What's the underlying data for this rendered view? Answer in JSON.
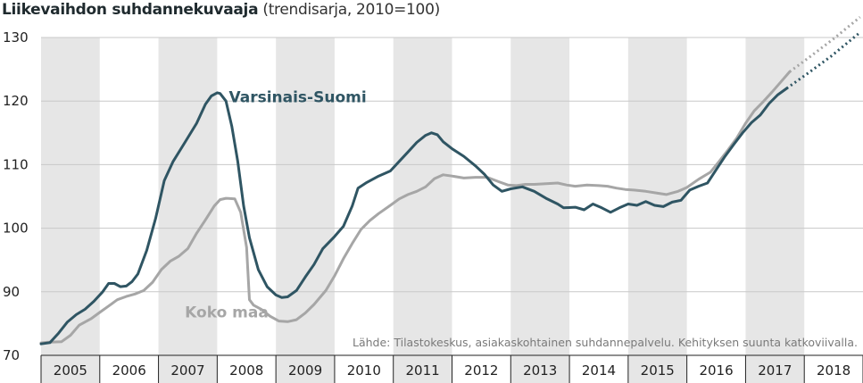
{
  "chart_data": {
    "type": "line",
    "title": "Liikevaihdon suhdannekuvaaja",
    "subtitle": "(trendisarja, 2010=100)",
    "source": "Lähde: Tilastokeskus, asiakaskohtainen suhdannepalvelu. Kehityksen suunta katkoviivalla.",
    "x_categories": [
      "2005",
      "2006",
      "2007",
      "2008",
      "2009",
      "2010",
      "2011",
      "2012",
      "2013",
      "2014",
      "2015",
      "2016",
      "2017",
      "2018"
    ],
    "xlim": [
      2005,
      2019
    ],
    "ylim": [
      70,
      130
    ],
    "y_ticks": [
      70,
      90,
      100,
      110,
      120,
      130
    ],
    "grid": true,
    "shaded_years": [
      "2005",
      "2007",
      "2009",
      "2011",
      "2013",
      "2015",
      "2017"
    ],
    "series": [
      {
        "name": "Varsinais-Suomi",
        "color": "#2f5563",
        "points": [
          [
            2005.0,
            73.6
          ],
          [
            2005.15,
            74.0
          ],
          [
            2005.3,
            77.0
          ],
          [
            2005.45,
            80.5
          ],
          [
            2005.6,
            82.8
          ],
          [
            2005.75,
            84.5
          ],
          [
            2005.9,
            87.0
          ],
          [
            2006.05,
            90.0
          ],
          [
            2006.15,
            91.3
          ],
          [
            2006.25,
            91.3
          ],
          [
            2006.35,
            90.8
          ],
          [
            2006.45,
            90.9
          ],
          [
            2006.55,
            91.6
          ],
          [
            2006.65,
            92.8
          ],
          [
            2006.8,
            96.5
          ],
          [
            2006.95,
            101.5
          ],
          [
            2007.1,
            107.5
          ],
          [
            2007.25,
            110.5
          ],
          [
            2007.45,
            113.5
          ],
          [
            2007.65,
            116.5
          ],
          [
            2007.8,
            119.5
          ],
          [
            2007.9,
            120.8
          ],
          [
            2008.0,
            121.3
          ],
          [
            2008.05,
            121.2
          ],
          [
            2008.15,
            120.0
          ],
          [
            2008.25,
            116.0
          ],
          [
            2008.35,
            110.5
          ],
          [
            2008.45,
            103.5
          ],
          [
            2008.55,
            98.5
          ],
          [
            2008.7,
            93.5
          ],
          [
            2008.85,
            90.8
          ],
          [
            2009.0,
            89.0
          ],
          [
            2009.1,
            88.2
          ],
          [
            2009.2,
            88.4
          ],
          [
            2009.35,
            90.2
          ],
          [
            2009.5,
            92.3
          ],
          [
            2009.65,
            94.3
          ],
          [
            2009.8,
            96.8
          ],
          [
            2010.0,
            98.7
          ],
          [
            2010.15,
            100.3
          ],
          [
            2010.3,
            103.5
          ],
          [
            2010.4,
            106.3
          ],
          [
            2010.55,
            107.2
          ],
          [
            2010.75,
            108.2
          ],
          [
            2010.95,
            109.0
          ],
          [
            2011.1,
            110.5
          ],
          [
            2011.25,
            112.0
          ],
          [
            2011.4,
            113.5
          ],
          [
            2011.55,
            114.6
          ],
          [
            2011.65,
            115.0
          ],
          [
            2011.75,
            114.7
          ],
          [
            2011.85,
            113.6
          ],
          [
            2012.0,
            112.5
          ],
          [
            2012.2,
            111.3
          ],
          [
            2012.4,
            109.8
          ],
          [
            2012.55,
            108.5
          ],
          [
            2012.7,
            106.8
          ],
          [
            2012.85,
            105.8
          ],
          [
            2013.0,
            106.2
          ],
          [
            2013.2,
            106.5
          ],
          [
            2013.4,
            105.8
          ],
          [
            2013.6,
            104.7
          ],
          [
            2013.8,
            103.8
          ],
          [
            2013.9,
            103.2
          ],
          [
            2014.1,
            103.3
          ],
          [
            2014.25,
            102.9
          ],
          [
            2014.4,
            103.8
          ],
          [
            2014.55,
            103.2
          ],
          [
            2014.7,
            102.5
          ],
          [
            2014.85,
            103.2
          ],
          [
            2015.0,
            103.8
          ],
          [
            2015.15,
            103.6
          ],
          [
            2015.3,
            104.2
          ],
          [
            2015.45,
            103.6
          ],
          [
            2015.6,
            103.4
          ],
          [
            2015.75,
            104.1
          ],
          [
            2015.9,
            104.4
          ],
          [
            2016.05,
            106.0
          ],
          [
            2016.2,
            106.6
          ],
          [
            2016.35,
            107.1
          ],
          [
            2016.5,
            109.2
          ],
          [
            2016.65,
            111.3
          ],
          [
            2016.8,
            113.2
          ],
          [
            2016.95,
            115.0
          ],
          [
            2017.1,
            116.6
          ],
          [
            2017.25,
            117.8
          ],
          [
            2017.4,
            119.6
          ],
          [
            2017.55,
            121.0
          ],
          [
            2017.7,
            122.0
          ]
        ],
        "forecast": [
          [
            2017.7,
            122.0
          ],
          [
            2018.05,
            124.3
          ],
          [
            2018.45,
            127.0
          ],
          [
            2018.95,
            130.8
          ]
        ]
      },
      {
        "name": "Koko maa",
        "color": "#a6a6a6",
        "points": [
          [
            2005.0,
            73.9
          ],
          [
            2005.1,
            74.1
          ],
          [
            2005.35,
            74.3
          ],
          [
            2005.5,
            76.3
          ],
          [
            2005.65,
            79.5
          ],
          [
            2005.85,
            81.5
          ],
          [
            2006.0,
            83.5
          ],
          [
            2006.15,
            85.5
          ],
          [
            2006.3,
            87.5
          ],
          [
            2006.45,
            88.5
          ],
          [
            2006.6,
            89.3
          ],
          [
            2006.75,
            90.2
          ],
          [
            2006.9,
            91.5
          ],
          [
            2007.05,
            93.5
          ],
          [
            2007.2,
            94.8
          ],
          [
            2007.35,
            95.6
          ],
          [
            2007.5,
            96.8
          ],
          [
            2007.65,
            99.2
          ],
          [
            2007.8,
            101.3
          ],
          [
            2007.95,
            103.5
          ],
          [
            2008.05,
            104.5
          ],
          [
            2008.15,
            104.7
          ],
          [
            2008.3,
            104.6
          ],
          [
            2008.4,
            102.5
          ],
          [
            2008.5,
            97.0
          ],
          [
            2008.55,
            87.5
          ],
          [
            2008.62,
            85.8
          ],
          [
            2008.75,
            84.5
          ],
          [
            2008.9,
            82.3
          ],
          [
            2009.05,
            80.8
          ],
          [
            2009.2,
            80.6
          ],
          [
            2009.35,
            81.2
          ],
          [
            2009.5,
            83.3
          ],
          [
            2009.65,
            86.0
          ],
          [
            2009.85,
            90.2
          ],
          [
            2010.0,
            92.5
          ],
          [
            2010.15,
            95.2
          ],
          [
            2010.3,
            97.6
          ],
          [
            2010.45,
            99.8
          ],
          [
            2010.6,
            101.2
          ],
          [
            2010.75,
            102.3
          ],
          [
            2010.95,
            103.6
          ],
          [
            2011.1,
            104.6
          ],
          [
            2011.25,
            105.3
          ],
          [
            2011.4,
            105.8
          ],
          [
            2011.55,
            106.5
          ],
          [
            2011.7,
            107.8
          ],
          [
            2011.85,
            108.4
          ],
          [
            2012.0,
            108.2
          ],
          [
            2012.2,
            107.9
          ],
          [
            2012.4,
            108.0
          ],
          [
            2012.6,
            108.0
          ],
          [
            2012.8,
            107.3
          ],
          [
            2012.95,
            106.8
          ],
          [
            2013.1,
            106.7
          ],
          [
            2013.25,
            106.9
          ],
          [
            2013.4,
            106.9
          ],
          [
            2013.6,
            107.0
          ],
          [
            2013.8,
            107.1
          ],
          [
            2013.95,
            106.8
          ],
          [
            2014.1,
            106.6
          ],
          [
            2014.3,
            106.8
          ],
          [
            2014.5,
            106.7
          ],
          [
            2014.65,
            106.6
          ],
          [
            2014.8,
            106.3
          ],
          [
            2014.95,
            106.1
          ],
          [
            2015.1,
            106.0
          ],
          [
            2015.3,
            105.8
          ],
          [
            2015.5,
            105.5
          ],
          [
            2015.65,
            105.3
          ],
          [
            2015.85,
            105.8
          ],
          [
            2016.0,
            106.4
          ],
          [
            2016.2,
            107.7
          ],
          [
            2016.4,
            108.8
          ],
          [
            2016.55,
            110.5
          ],
          [
            2016.7,
            112.3
          ],
          [
            2016.85,
            114.2
          ],
          [
            2017.0,
            116.5
          ],
          [
            2017.15,
            118.5
          ],
          [
            2017.3,
            119.9
          ],
          [
            2017.45,
            121.4
          ],
          [
            2017.6,
            123.0
          ],
          [
            2017.75,
            124.6
          ]
        ],
        "forecast": [
          [
            2017.75,
            124.6
          ],
          [
            2018.1,
            127.0
          ],
          [
            2018.5,
            129.8
          ],
          [
            2018.95,
            133.2
          ]
        ]
      }
    ],
    "series_labels": [
      {
        "text": "Varsinais-Suomi",
        "series": 0,
        "at_x": 2008.2,
        "at_y": 119.8
      },
      {
        "text": "Koko maa",
        "series": 1,
        "at_x": 2007.45,
        "at_y": 82.0
      }
    ]
  }
}
